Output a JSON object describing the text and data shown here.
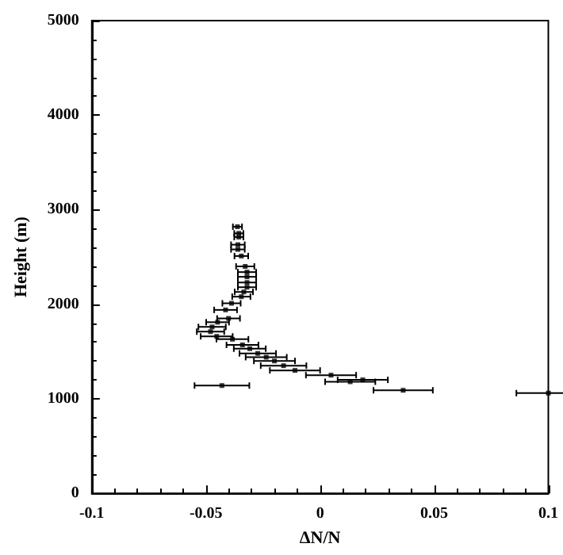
{
  "chart_data": {
    "type": "scatter",
    "xlabel": "ΔN/N",
    "ylabel": "Height (m)",
    "x": [
      -0.0362,
      -0.0356,
      -0.0356,
      -0.036,
      -0.036,
      -0.0345,
      -0.0328,
      -0.032,
      -0.032,
      -0.032,
      -0.032,
      -0.0334,
      -0.0345,
      -0.0388,
      -0.0414,
      -0.0401,
      -0.0449,
      -0.0473,
      -0.048,
      -0.0453,
      -0.0384,
      -0.034,
      -0.0308,
      -0.0273,
      -0.0236,
      -0.02,
      -0.016,
      -0.011,
      0.0048,
      0.0187,
      0.0132,
      0.0364,
      -0.043,
      0.1
    ],
    "values": [
      2820,
      2750,
      2710,
      2630,
      2580,
      2510,
      2400,
      2340,
      2290,
      2230,
      2180,
      2130,
      2080,
      2010,
      1940,
      1850,
      1810,
      1760,
      1710,
      1660,
      1630,
      1570,
      1530,
      1480,
      1440,
      1400,
      1350,
      1300,
      1250,
      1200,
      1180,
      1090,
      1140,
      1060
    ],
    "xerrors": [
      0.002,
      0.002,
      0.002,
      0.003,
      0.003,
      0.003,
      0.004,
      0.004,
      0.004,
      0.004,
      0.004,
      0.004,
      0.004,
      0.004,
      0.005,
      0.005,
      0.005,
      0.006,
      0.006,
      0.007,
      0.007,
      0.007,
      0.007,
      0.008,
      0.009,
      0.009,
      0.01,
      0.011,
      0.011,
      0.011,
      0.011,
      0.013,
      0.012,
      0.014
    ],
    "color": "#000000",
    "marker": "square",
    "xlim": [
      -0.1,
      0.1
    ],
    "xticks": [
      -0.1,
      -0.05,
      0,
      0.05,
      0.1
    ],
    "ylim": [
      0,
      5000
    ],
    "yticks": [
      0,
      1000,
      2000,
      3000,
      4000,
      5000
    ],
    "grid": false
  }
}
